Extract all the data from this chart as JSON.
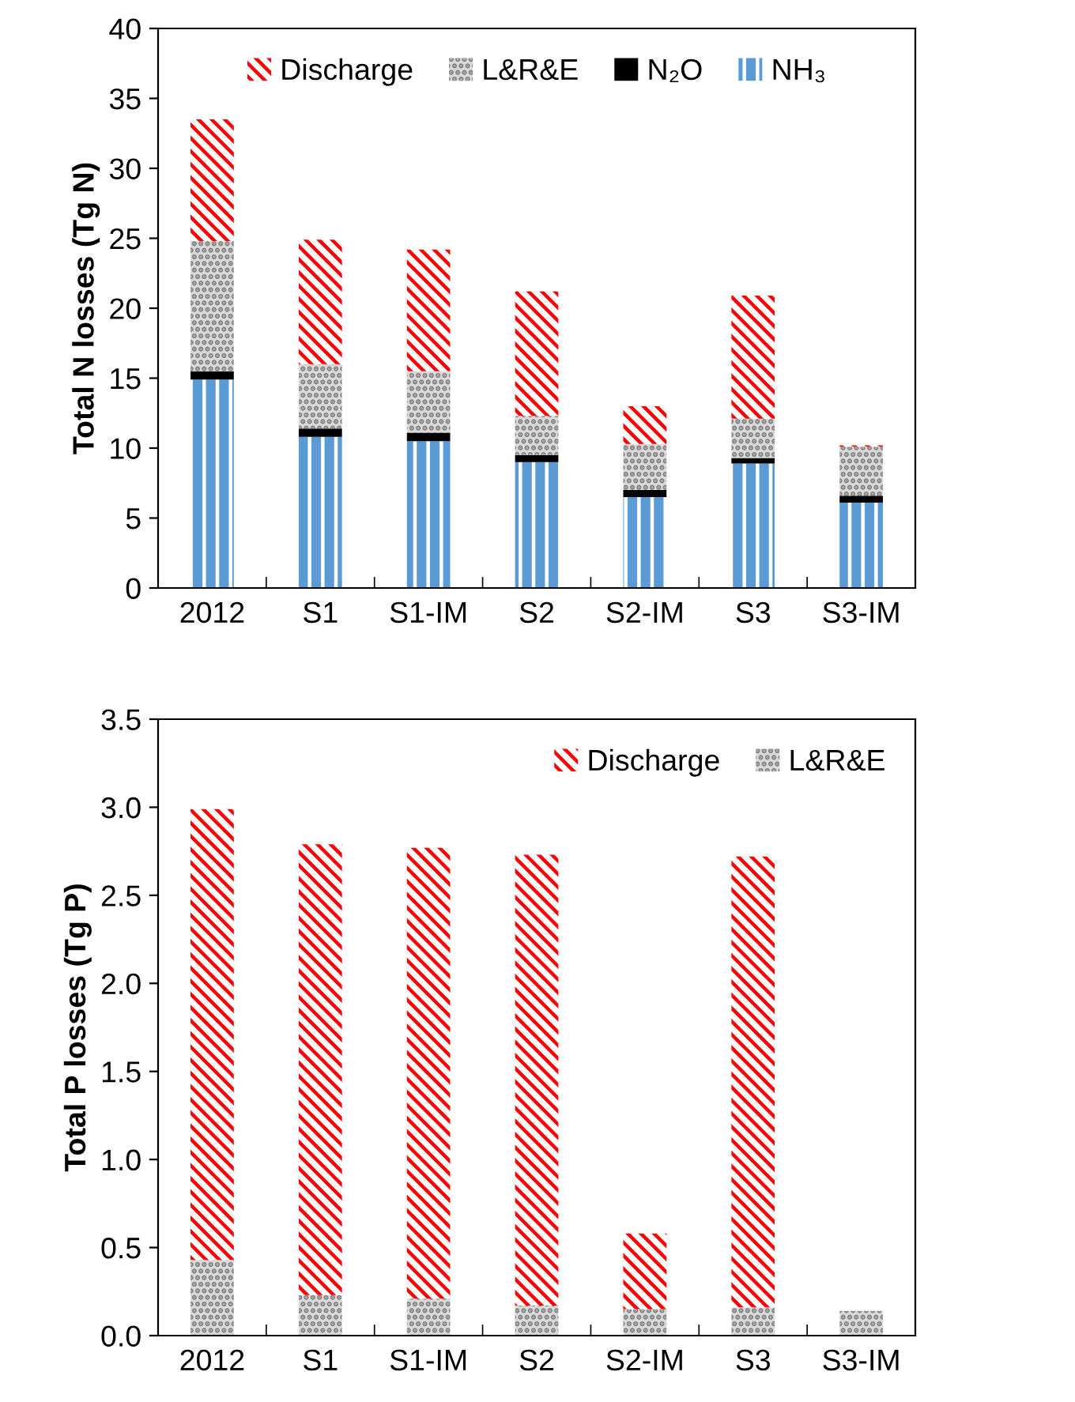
{
  "chart_data": [
    {
      "type": "bar",
      "stacked": true,
      "ylabel": "Total N losses (Tg N)",
      "categories": [
        "2012",
        "S1",
        "S1-IM",
        "S2",
        "S2-IM",
        "S3",
        "S3-IM"
      ],
      "series": [
        {
          "name": "NH₃",
          "color": "#5b9bd5",
          "values": [
            14.9,
            10.8,
            10.5,
            9.0,
            6.5,
            8.9,
            6.1
          ]
        },
        {
          "name": "N₂O",
          "color": "#000000",
          "values": [
            0.6,
            0.6,
            0.6,
            0.5,
            0.5,
            0.4,
            0.5
          ]
        },
        {
          "name": "L&R&E",
          "color": "#d9d9d9",
          "values": [
            9.3,
            4.6,
            4.4,
            2.8,
            3.3,
            2.8,
            3.5
          ]
        },
        {
          "name": "Discharge",
          "color": "#ff0000",
          "values": [
            8.7,
            8.9,
            8.7,
            8.9,
            2.7,
            8.8,
            0.1
          ]
        }
      ],
      "ylim": [
        0,
        40
      ],
      "yticks": [
        0,
        5,
        10,
        15,
        20,
        25,
        30,
        35,
        40
      ],
      "legend": "top",
      "grid": false
    },
    {
      "type": "bar",
      "stacked": true,
      "ylabel": "Total P losses (Tg P)",
      "categories": [
        "2012",
        "S1",
        "S1-IM",
        "S2",
        "S2-IM",
        "S3",
        "S3-IM"
      ],
      "series": [
        {
          "name": "L&R&E",
          "color": "#d9d9d9",
          "values": [
            0.43,
            0.23,
            0.21,
            0.17,
            0.15,
            0.16,
            0.14
          ]
        },
        {
          "name": "Discharge",
          "color": "#ff0000",
          "values": [
            2.56,
            2.56,
            2.56,
            2.56,
            0.43,
            2.56,
            0
          ]
        }
      ],
      "ylim": [
        0,
        3.5
      ],
      "yticks": [
        {
          "value": 0,
          "label": "0.0"
        },
        {
          "value": 0.5,
          "label": "0.5"
        },
        {
          "value": 1,
          "label": "1.0"
        },
        {
          "value": 1.5,
          "label": "1.5"
        },
        {
          "value": 2,
          "label": "2.0"
        },
        {
          "value": 2.5,
          "label": "2.5"
        },
        {
          "value": 3,
          "label": "3.0"
        },
        {
          "value": 3.5,
          "label": "3.5"
        }
      ],
      "legend": "top right",
      "grid": false
    }
  ]
}
